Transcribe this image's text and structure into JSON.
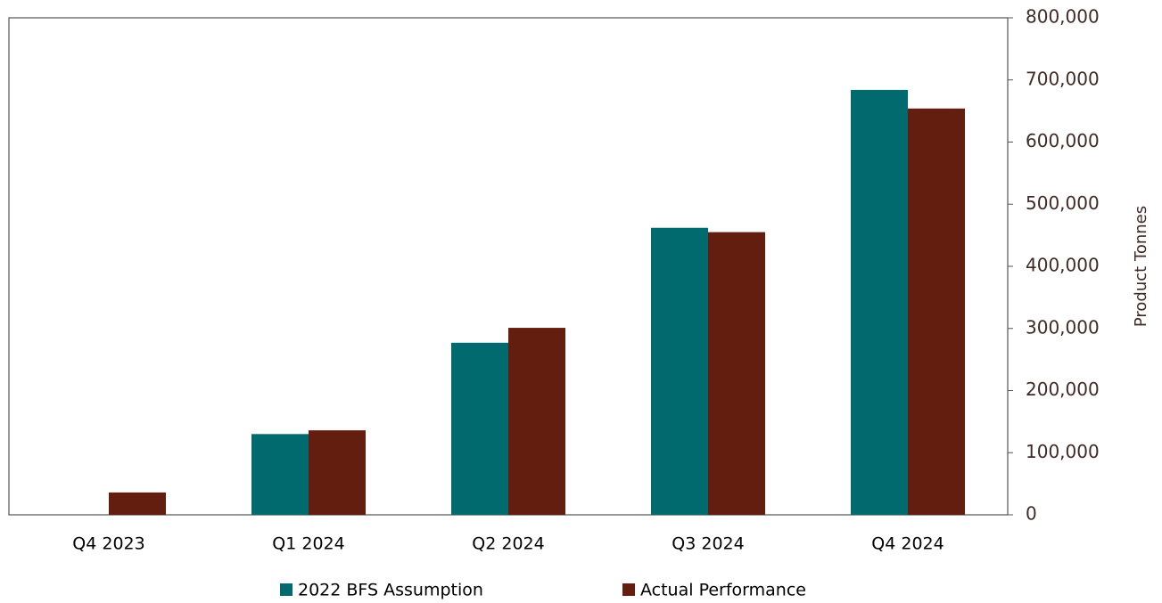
{
  "chart_data": {
    "type": "bar",
    "categories": [
      "Q4 2023",
      "Q1 2024",
      "Q2 2024",
      "Q3 2024",
      "Q4 2024"
    ],
    "series": [
      {
        "name": "2022 BFS Assumption",
        "color": "#006a6f",
        "values": [
          null,
          130000,
          277000,
          462000,
          684000
        ]
      },
      {
        "name": "Actual Performance",
        "color": "#641e10",
        "values": [
          36000,
          136000,
          301000,
          455000,
          654000
        ]
      }
    ],
    "y_axis_label": "Product Tonnes",
    "y_axis_side": "right",
    "ylim": [
      0,
      800000
    ],
    "yticks": [
      0,
      {
        "value": 100000,
        "label": "100,000"
      },
      {
        "value": 200000,
        "label": "200,000"
      },
      {
        "value": 300000,
        "label": "300,000"
      },
      {
        "value": 400000,
        "label": "400,000"
      },
      {
        "value": 500000,
        "label": "500,000"
      },
      {
        "value": 600000,
        "label": "600,000"
      },
      {
        "value": 700000,
        "label": "700,000"
      },
      {
        "value": 800000,
        "label": "800,000"
      }
    ],
    "grid": false,
    "legend": "bottom"
  }
}
